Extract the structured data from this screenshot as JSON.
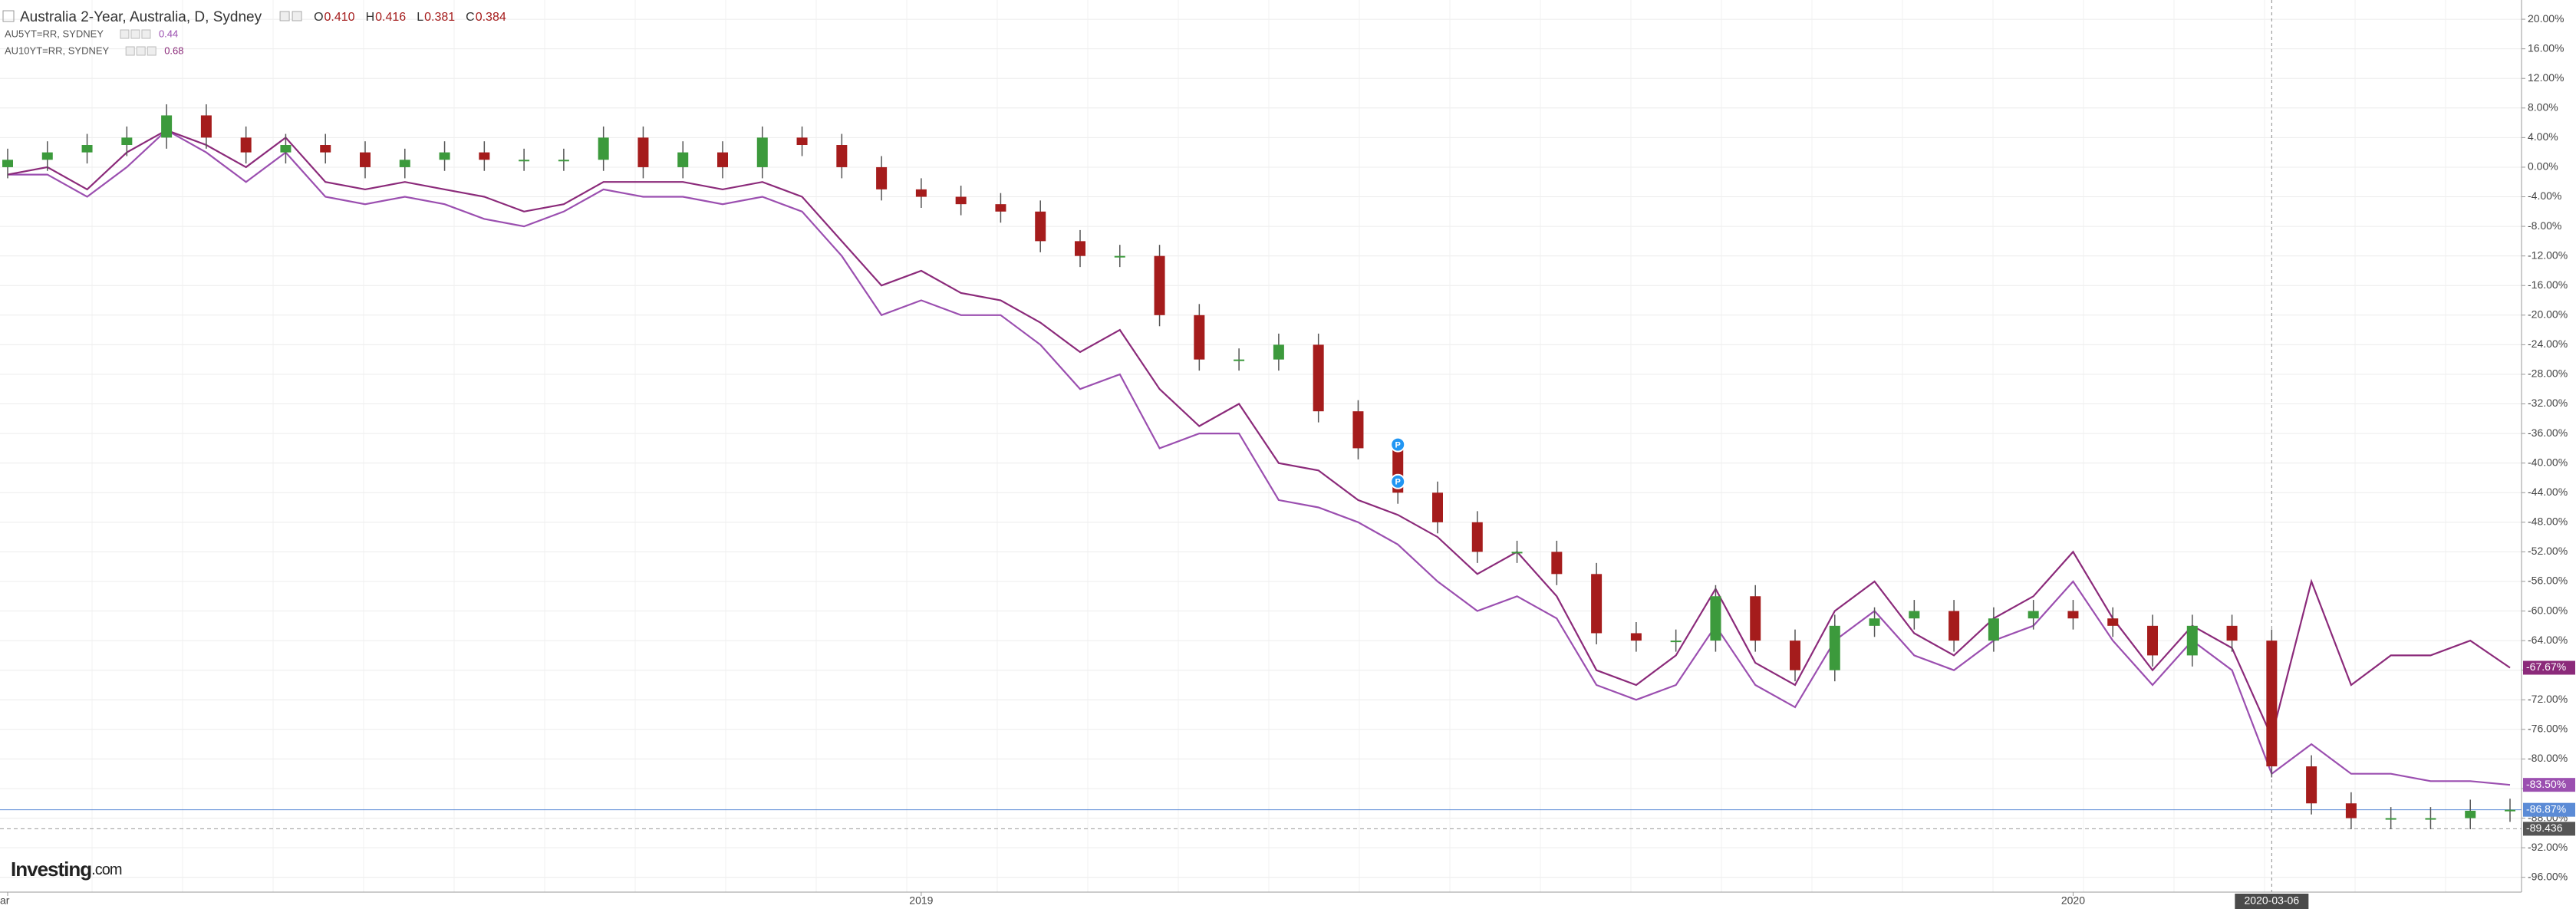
{
  "chart_data": {
    "type": "candlestick",
    "title": "Australia 2-Year, Australia, D, Sydney",
    "ohlc_legend": [
      {
        "label": "O",
        "value": "0.410"
      },
      {
        "label": "H",
        "value": "0.416"
      },
      {
        "label": "L",
        "value": "0.381"
      },
      {
        "label": "C",
        "value": "0.384"
      }
    ],
    "categories": [
      "ar",
      null,
      null,
      null,
      null,
      null,
      null,
      null,
      null,
      null,
      null,
      null,
      null,
      null,
      null,
      null,
      null,
      null,
      null,
      null,
      null,
      null,
      null,
      "2019",
      null,
      null,
      null,
      null,
      null,
      null,
      null,
      null,
      null,
      null,
      null,
      null,
      null,
      null,
      null,
      null,
      null,
      null,
      null,
      null,
      null,
      null,
      null,
      null,
      null,
      null,
      null,
      null,
      "2020",
      null,
      null,
      null,
      null,
      "2020-03-06",
      null,
      null,
      null,
      null,
      null,
      null
    ],
    "crosshair": 57,
    "open": [
      0,
      1,
      2,
      3,
      4,
      7,
      4,
      2,
      3,
      2,
      0,
      1,
      2,
      1,
      1,
      1,
      4,
      0,
      2,
      0,
      4,
      3,
      0,
      -3,
      -4,
      -5,
      -6,
      -10,
      -12,
      -12,
      -20,
      -26,
      -26,
      -24,
      -33,
      -38,
      -44,
      -48,
      -52,
      -52,
      -55,
      -63,
      -64,
      -64,
      -58,
      -64,
      -68,
      -62,
      -61,
      -60,
      -64,
      -61,
      -60,
      -61,
      -62,
      -66,
      -62,
      -64,
      -81,
      -86,
      -88,
      -88,
      -88,
      -87
    ],
    "high": [
      2.5,
      3.5,
      4.5,
      5.5,
      8.5,
      8.5,
      5.5,
      4.5,
      4.5,
      3.5,
      2.5,
      3.5,
      3.5,
      2.5,
      2.5,
      5.5,
      5.5,
      3.5,
      3.5,
      5.5,
      5.5,
      4.5,
      1.5,
      -1.5,
      -2.5,
      -3.5,
      -4.5,
      -8.5,
      -10.5,
      -10.5,
      -18.5,
      -24.5,
      -22.5,
      -22.5,
      -31.5,
      -36.5,
      -42.5,
      -46.5,
      -50.5,
      -50.5,
      -53.5,
      -61.5,
      -62.5,
      -56.5,
      -56.5,
      -62.5,
      -60.5,
      -59.5,
      -58.5,
      -58.5,
      -59.5,
      -58.5,
      -58.5,
      -59.5,
      -60.5,
      -60.5,
      -60.5,
      -62.5,
      -79.5,
      -84.5,
      -86.5,
      -86.5,
      -85.5,
      -85.37
    ],
    "low": [
      -1.5,
      -0.5,
      0.5,
      1.5,
      2.5,
      2.5,
      0.5,
      0.5,
      0.5,
      -1.5,
      -1.5,
      -0.5,
      -0.5,
      -0.5,
      -0.5,
      -0.5,
      -1.5,
      -1.5,
      -1.5,
      -1.5,
      1.5,
      -1.5,
      -4.5,
      -5.5,
      -6.5,
      -7.5,
      -11.5,
      -13.5,
      -13.5,
      -21.5,
      -27.5,
      -27.5,
      -27.5,
      -34.5,
      -39.5,
      -45.5,
      -49.5,
      -53.5,
      -53.5,
      -56.5,
      -64.5,
      -65.5,
      -65.5,
      -65.5,
      -65.5,
      -69.5,
      -69.5,
      -63.5,
      -62.5,
      -65.5,
      -65.5,
      -62.5,
      -62.5,
      -63.5,
      -67.5,
      -67.5,
      -65.5,
      -82.5,
      -87.5,
      -89.5,
      -89.5,
      -89.5,
      -89.5,
      -88.5
    ],
    "close": [
      1,
      2,
      3,
      4,
      7,
      4,
      2,
      3,
      2,
      0,
      1,
      2,
      1,
      1,
      1,
      4,
      0,
      2,
      0,
      4,
      3,
      0,
      -3,
      -4,
      -5,
      -6,
      -10,
      -12,
      -12,
      -20,
      -26,
      -26,
      -24,
      -33,
      -38,
      -44,
      -48,
      -52,
      -52,
      -55,
      -63,
      -64,
      -64,
      -58,
      -64,
      -68,
      -62,
      -61,
      -60,
      -64,
      -61,
      -60,
      -61,
      -62,
      -66,
      -62,
      -64,
      -81,
      -86,
      -88,
      -88,
      -88,
      -87,
      -86.87
    ],
    "value_labels": [
      null,
      null,
      null,
      null,
      null,
      null,
      null,
      null,
      null,
      null,
      null,
      null,
      null,
      null,
      null,
      null,
      null,
      null,
      null,
      null,
      null,
      null,
      null,
      null,
      null,
      null,
      null,
      null,
      null,
      null,
      null,
      null,
      null,
      null,
      null,
      null,
      null,
      null,
      null,
      null,
      null,
      null,
      null,
      null,
      null,
      null,
      null,
      null,
      null,
      null,
      null,
      null,
      null,
      null,
      null,
      null,
      null,
      null,
      null,
      null,
      null,
      null,
      null,
      "-86.87%"
    ],
    "up_color": "#3c9a3c",
    "down_color": "#a51c1c",
    "last_color": "#5b8bd6",
    "series": [
      {
        "name": "AU5YT=RR, SYDNEY",
        "legend_value": 0.44,
        "color": "#9b4fb0",
        "values": [
          -1,
          -1,
          -4,
          0,
          5,
          2,
          -2,
          2,
          -4,
          -5,
          -4,
          -5,
          -7,
          -8,
          -6,
          -3,
          -4,
          -4,
          -5,
          -4,
          -6,
          -12,
          -20,
          -18,
          -20,
          -20,
          -24,
          -30,
          -28,
          -38,
          -36,
          -36,
          -45,
          -46,
          -48,
          -51,
          -56,
          -60,
          -58,
          -61,
          -70,
          -72,
          -70,
          -62,
          -70,
          -73,
          -64,
          -60,
          -66,
          -68,
          -64,
          -62,
          -56,
          -64,
          -70,
          -64,
          -68,
          -82,
          -78,
          -82,
          -82,
          -83,
          -83,
          -83.5
        ],
        "value_labels": [
          null,
          null,
          null,
          null,
          null,
          null,
          null,
          null,
          null,
          null,
          null,
          null,
          null,
          null,
          null,
          null,
          null,
          null,
          null,
          null,
          null,
          null,
          null,
          null,
          null,
          null,
          null,
          null,
          null,
          null,
          null,
          null,
          null,
          null,
          null,
          null,
          null,
          null,
          null,
          null,
          null,
          null,
          null,
          null,
          null,
          null,
          null,
          null,
          null,
          null,
          null,
          null,
          null,
          null,
          null,
          null,
          null,
          null,
          null,
          null,
          null,
          null,
          null,
          "-83.50%"
        ]
      },
      {
        "name": "AU10YT=RR, SYDNEY",
        "legend_value": 0.68,
        "color": "#8b2a7a",
        "values": [
          -1,
          0,
          -3,
          2,
          5,
          3,
          0,
          4,
          -2,
          -3,
          -2,
          -3,
          -4,
          -6,
          -5,
          -2,
          -2,
          -2,
          -3,
          -2,
          -4,
          -10,
          -16,
          -14,
          -17,
          -18,
          -21,
          -25,
          -22,
          -30,
          -35,
          -32,
          -40,
          -41,
          -45,
          -47,
          -50,
          -55,
          -52,
          -58,
          -68,
          -70,
          -66,
          -57,
          -67,
          -70,
          -60,
          -56,
          -63,
          -66,
          -61,
          -58,
          -52,
          -61,
          -68,
          -62,
          -65,
          -77,
          -56,
          -70,
          -66,
          -66,
          -64,
          -67.67
        ],
        "value_labels": [
          null,
          null,
          null,
          null,
          null,
          null,
          null,
          null,
          null,
          null,
          null,
          null,
          null,
          null,
          null,
          null,
          null,
          null,
          null,
          null,
          null,
          null,
          null,
          null,
          null,
          null,
          null,
          null,
          null,
          null,
          null,
          null,
          null,
          null,
          null,
          null,
          null,
          null,
          null,
          null,
          null,
          null,
          null,
          null,
          null,
          null,
          null,
          null,
          null,
          null,
          null,
          null,
          null,
          null,
          null,
          null,
          null,
          null,
          null,
          null,
          null,
          null,
          null,
          "-67.67%"
        ]
      }
    ],
    "reference_line": {
      "value": -89.436,
      "label": "-89.436"
    },
    "markers": [
      {
        "text": "P",
        "at": 35,
        "value": -37.5
      },
      {
        "text": "P",
        "at": 35,
        "value": -42.5
      }
    ],
    "ylim": [
      -98,
      22.6
    ],
    "yticks": [
      {
        "value": 20,
        "label": "20.00%"
      },
      {
        "value": 16,
        "label": "16.00%"
      },
      {
        "value": 12,
        "label": "12.00%"
      },
      {
        "value": 8,
        "label": "8.00%"
      },
      {
        "value": 4,
        "label": "4.00%"
      },
      {
        "value": 0,
        "label": "0.00%"
      },
      {
        "value": -4,
        "label": "-4.00%"
      },
      {
        "value": -8,
        "label": "-8.00%"
      },
      {
        "value": -12,
        "label": "-12.00%"
      },
      {
        "value": -16,
        "label": "-16.00%"
      },
      {
        "value": -20,
        "label": "-20.00%"
      },
      {
        "value": -24,
        "label": "-24.00%"
      },
      {
        "value": -28,
        "label": "-28.00%"
      },
      {
        "value": -32,
        "label": "-32.00%"
      },
      {
        "value": -36,
        "label": "-36.00%"
      },
      {
        "value": -40,
        "label": "-40.00%"
      },
      {
        "value": -44,
        "label": "-44.00%"
      },
      {
        "value": -48,
        "label": "-48.00%"
      },
      {
        "value": -52,
        "label": "-52.00%"
      },
      {
        "value": -56,
        "label": "-56.00%"
      },
      {
        "value": -60,
        "label": "-60.00%"
      },
      {
        "value": -64,
        "label": "-64.00%"
      },
      {
        "value": -68,
        "label": "-68.00%"
      },
      {
        "value": -72,
        "label": "-72.00%"
      },
      {
        "value": -76,
        "label": "-76.00%"
      },
      {
        "value": -80,
        "label": "-80.00%"
      },
      {
        "value": -84,
        "label": "-84.00%"
      },
      {
        "value": -88,
        "label": "-88.00%"
      },
      {
        "value": -92,
        "label": "-92.00%"
      },
      {
        "value": -96,
        "label": "-96.00%"
      }
    ],
    "grid": true,
    "logo": [
      "Investing",
      ".com"
    ]
  }
}
